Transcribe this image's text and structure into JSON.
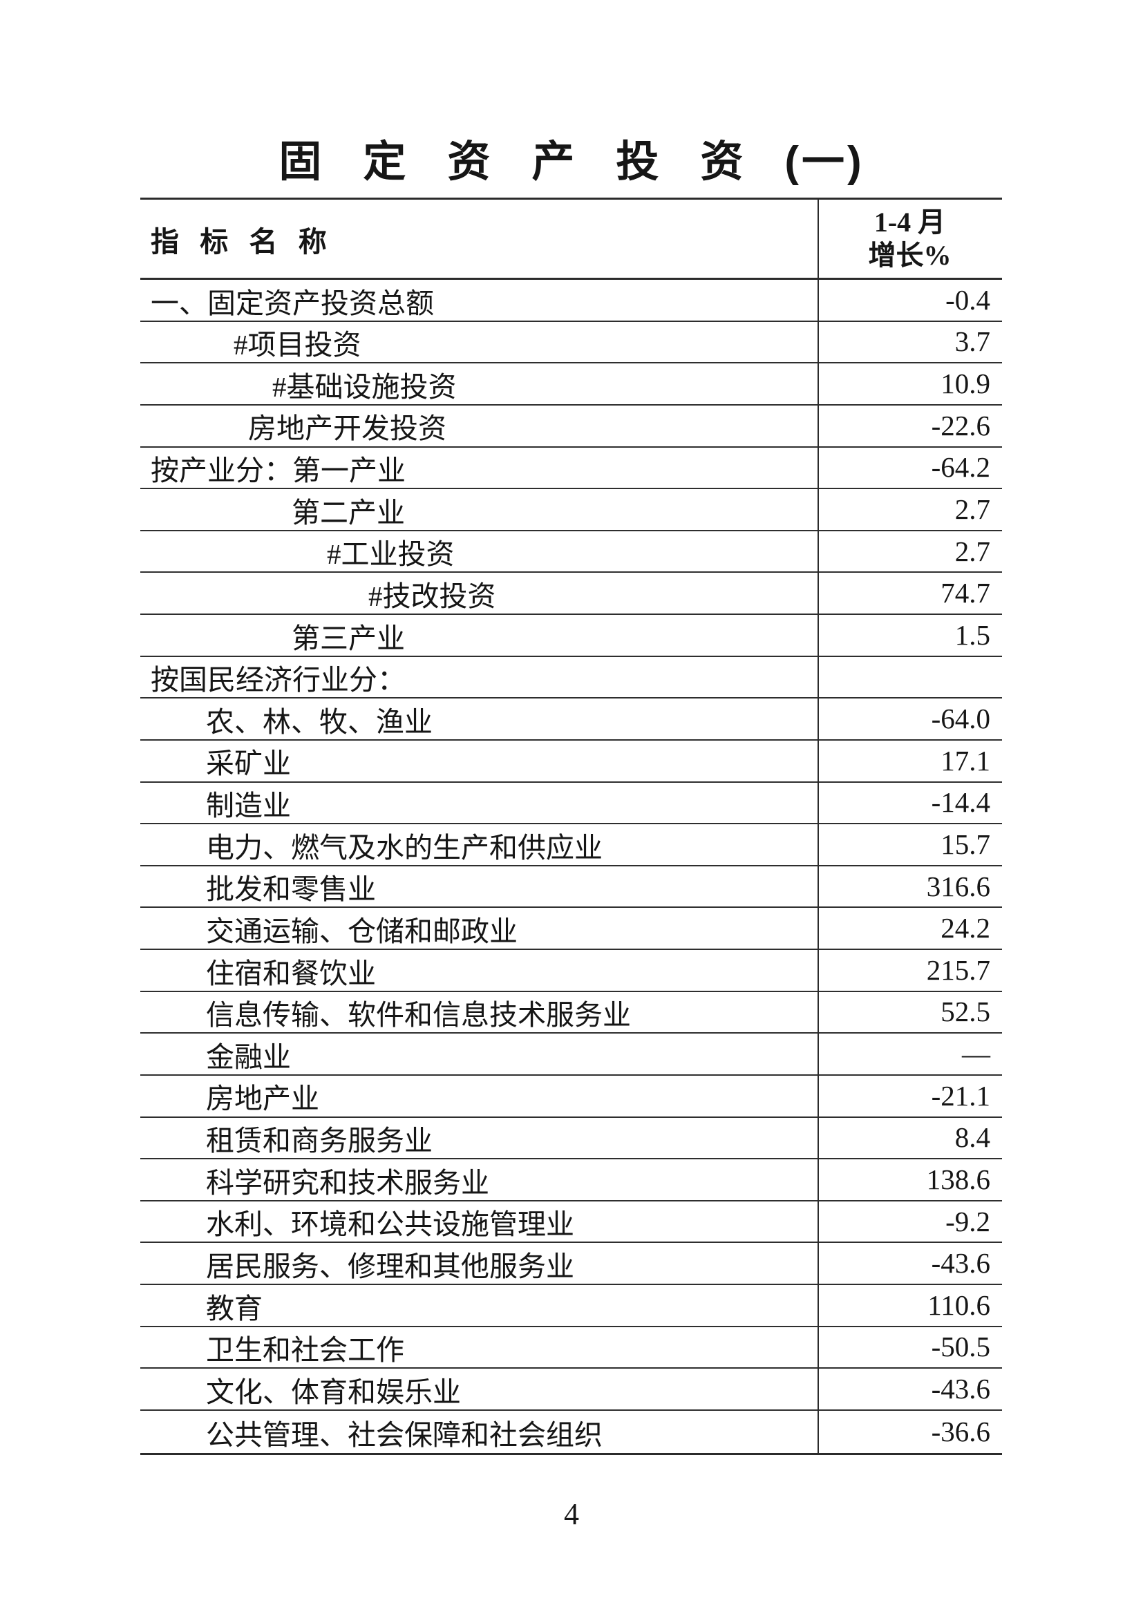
{
  "title": {
    "main": "固定资产投资",
    "suffix": "(一)"
  },
  "colors": {
    "background": "#ffffff",
    "text": "#161616",
    "rule_line": "#2b2b2b"
  },
  "table": {
    "header": {
      "indicator": "指 标 名 称",
      "period": "1-4 月",
      "metric": "增长%"
    },
    "rows": [
      {
        "label": "一、固定资产投资总额",
        "value": "-0.4",
        "indent": 15
      },
      {
        "label": "#项目投资",
        "value": "3.7",
        "indent": 135
      },
      {
        "label": "#基础设施投资",
        "value": "10.9",
        "indent": 191
      },
      {
        "label": "房地产开发投资",
        "value": "-22.6",
        "indent": 156
      },
      {
        "label": "按产业分：第一产业",
        "value": "-64.2",
        "indent": 15
      },
      {
        "label": "第二产业",
        "value": "2.7",
        "indent": 219
      },
      {
        "label": "#工业投资",
        "value": "2.7",
        "indent": 270
      },
      {
        "label": "#技改投资",
        "value": "74.7",
        "indent": 330
      },
      {
        "label": "第三产业",
        "value": "1.5",
        "indent": 219
      },
      {
        "label": "按国民经济行业分：",
        "value": "",
        "indent": 15
      },
      {
        "label": "农、林、牧、渔业",
        "value": "-64.0",
        "indent": 95
      },
      {
        "label": "采矿业",
        "value": "17.1",
        "indent": 95
      },
      {
        "label": "制造业",
        "value": "-14.4",
        "indent": 95
      },
      {
        "label": "电力、燃气及水的生产和供应业",
        "value": "15.7",
        "indent": 95
      },
      {
        "label": "批发和零售业",
        "value": "316.6",
        "indent": 95
      },
      {
        "label": "交通运输、仓储和邮政业",
        "value": "24.2",
        "indent": 95
      },
      {
        "label": "住宿和餐饮业",
        "value": "215.7",
        "indent": 95
      },
      {
        "label": "信息传输、软件和信息技术服务业",
        "value": "52.5",
        "indent": 95
      },
      {
        "label": "金融业",
        "value": "—",
        "indent": 95
      },
      {
        "label": "房地产业",
        "value": "-21.1",
        "indent": 95
      },
      {
        "label": "租赁和商务服务业",
        "value": "8.4",
        "indent": 95
      },
      {
        "label": "科学研究和技术服务业",
        "value": "138.6",
        "indent": 95
      },
      {
        "label": "水利、环境和公共设施管理业",
        "value": "-9.2",
        "indent": 95
      },
      {
        "label": "居民服务、修理和其他服务业",
        "value": "-43.6",
        "indent": 95
      },
      {
        "label": "教育",
        "value": "110.6",
        "indent": 95
      },
      {
        "label": "卫生和社会工作",
        "value": "-50.5",
        "indent": 95
      },
      {
        "label": "文化、体育和娱乐业",
        "value": "-43.6",
        "indent": 95
      },
      {
        "label": "公共管理、社会保障和社会组织",
        "value": "-36.6",
        "indent": 95
      }
    ]
  },
  "footer": {
    "page_number": "4"
  }
}
